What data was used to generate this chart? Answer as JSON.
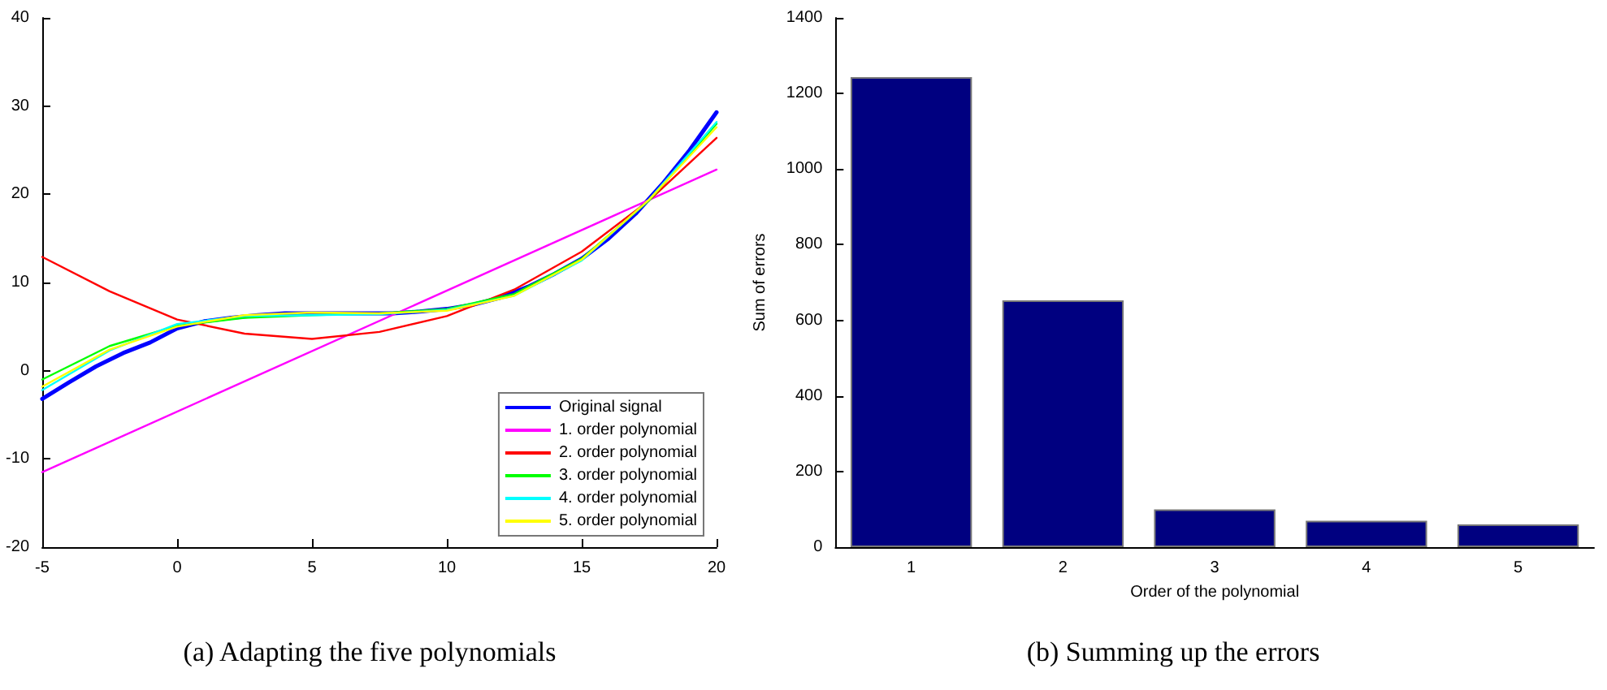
{
  "chart_data": [
    {
      "type": "line",
      "title": "(a) Adapting the five polynomials",
      "x": [
        -5,
        -2.5,
        0,
        2.5,
        5,
        7.5,
        10,
        12.5,
        15,
        17.5,
        20
      ],
      "series": [
        {
          "name": "Original signal",
          "color": "#0000ff",
          "x": [
            -5,
            -4,
            -3,
            -2,
            -1,
            0,
            1,
            2,
            3,
            4,
            5,
            6,
            7,
            8,
            9,
            10,
            11,
            12,
            13,
            14,
            15,
            16,
            17,
            18,
            19,
            20
          ],
          "values": [
            -3.2,
            -1.3,
            0.5,
            2.0,
            3.2,
            4.8,
            5.6,
            6.0,
            6.3,
            6.5,
            6.5,
            6.5,
            6.5,
            6.5,
            6.7,
            7.0,
            7.5,
            8.3,
            9.5,
            11.0,
            12.7,
            15.0,
            17.8,
            21.2,
            25.0,
            29.3
          ]
        },
        {
          "name": "1. order polynomial",
          "color": "#ff00ff",
          "x": [
            -5,
            20
          ],
          "values": [
            -11.5,
            22.8
          ]
        },
        {
          "name": "2. order polynomial",
          "color": "#ff0000",
          "values": [
            12.9,
            9.0,
            5.8,
            4.2,
            3.6,
            4.4,
            6.2,
            9.2,
            13.5,
            19.3,
            26.4
          ]
        },
        {
          "name": "3. order polynomial",
          "color": "#00ff00",
          "values": [
            -1.0,
            2.8,
            5.1,
            6.0,
            6.3,
            6.5,
            7.0,
            8.7,
            12.7,
            19.3,
            28.0
          ]
        },
        {
          "name": "4. order polynomial",
          "color": "#00ffff",
          "values": [
            -2.2,
            2.3,
            5.3,
            6.2,
            6.3,
            6.4,
            6.9,
            8.5,
            12.5,
            19.4,
            28.2
          ]
        },
        {
          "name": "5. order polynomial",
          "color": "#ffff00",
          "values": [
            -1.8,
            2.4,
            5.0,
            6.3,
            6.6,
            6.5,
            6.8,
            8.5,
            12.6,
            19.4,
            27.6
          ]
        }
      ],
      "xlim": [
        -5,
        20
      ],
      "xticks": [
        -5,
        0,
        5,
        10,
        15,
        20
      ],
      "ylim": [
        -20,
        40
      ],
      "yticks": [
        -20,
        -10,
        0,
        10,
        20,
        30,
        40
      ],
      "legend": "bottom right",
      "marker": "none",
      "line_style": "solid"
    },
    {
      "type": "bar",
      "title": "(b) Summing up the errors",
      "xlabel": "Order of the polynomial",
      "ylabel": "Sum of errors",
      "categories": [
        "1",
        "2",
        "3",
        "4",
        "5"
      ],
      "values": [
        1243,
        653,
        100,
        70,
        60
      ],
      "color": "#000080",
      "ylim": [
        0,
        1400
      ],
      "yticks": [
        0,
        200,
        400,
        600,
        800,
        1000,
        1200,
        1400
      ]
    }
  ]
}
